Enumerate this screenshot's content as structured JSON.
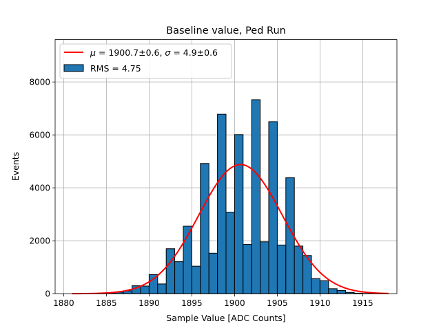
{
  "chart_data": {
    "type": "bar",
    "title": "Baseline value, Ped Run",
    "xlabel": "Sample Value [ADC Counts]",
    "ylabel": "Events",
    "xlim": [
      1879,
      1919
    ],
    "ylim": [
      0,
      9600
    ],
    "grid": true,
    "legend_position": "top-left",
    "x_ticks": [
      1880,
      1885,
      1890,
      1895,
      1900,
      1905,
      1910,
      1915
    ],
    "y_ticks": [
      0,
      2000,
      4000,
      6000,
      8000
    ],
    "bin_width": 1,
    "histogram": {
      "name": "RMS = 4.75",
      "bin_left_edges": [
        1881,
        1882,
        1883,
        1884,
        1885,
        1886,
        1887,
        1888,
        1889,
        1890,
        1891,
        1892,
        1893,
        1894,
        1895,
        1896,
        1897,
        1898,
        1899,
        1900,
        1901,
        1902,
        1903,
        1904,
        1905,
        1906,
        1907,
        1908,
        1909,
        1910,
        1911,
        1912,
        1913,
        1914,
        1915,
        1916,
        1917
      ],
      "counts": [
        5,
        10,
        15,
        20,
        30,
        60,
        110,
        300,
        290,
        720,
        370,
        1700,
        1210,
        2550,
        1040,
        4920,
        1530,
        6780,
        3080,
        6010,
        1860,
        7330,
        1960,
        6500,
        1840,
        4380,
        1800,
        1440,
        570,
        490,
        190,
        120,
        50,
        20,
        10,
        5,
        2
      ],
      "color": "#1f77b4",
      "edge_color": "#000000"
    },
    "fit": {
      "name_prefix": "μ = 1900.7±0.6, σ = ",
      "sigma_letter": "σ",
      "name_suffix": " = 4.9±0.6",
      "mu": 1900.7,
      "sigma": 4.9,
      "amplitude": 4880,
      "x_range": [
        1881,
        1918
      ],
      "color": "#ff0000"
    },
    "legend": [
      {
        "type": "line",
        "label_mu": "μ",
        "label_mid": " = 1900.7±0.6, ",
        "label_sigma": "σ",
        "label_end": " = 4.9±0.6"
      },
      {
        "type": "patch",
        "label": "RMS = 4.75"
      }
    ]
  }
}
